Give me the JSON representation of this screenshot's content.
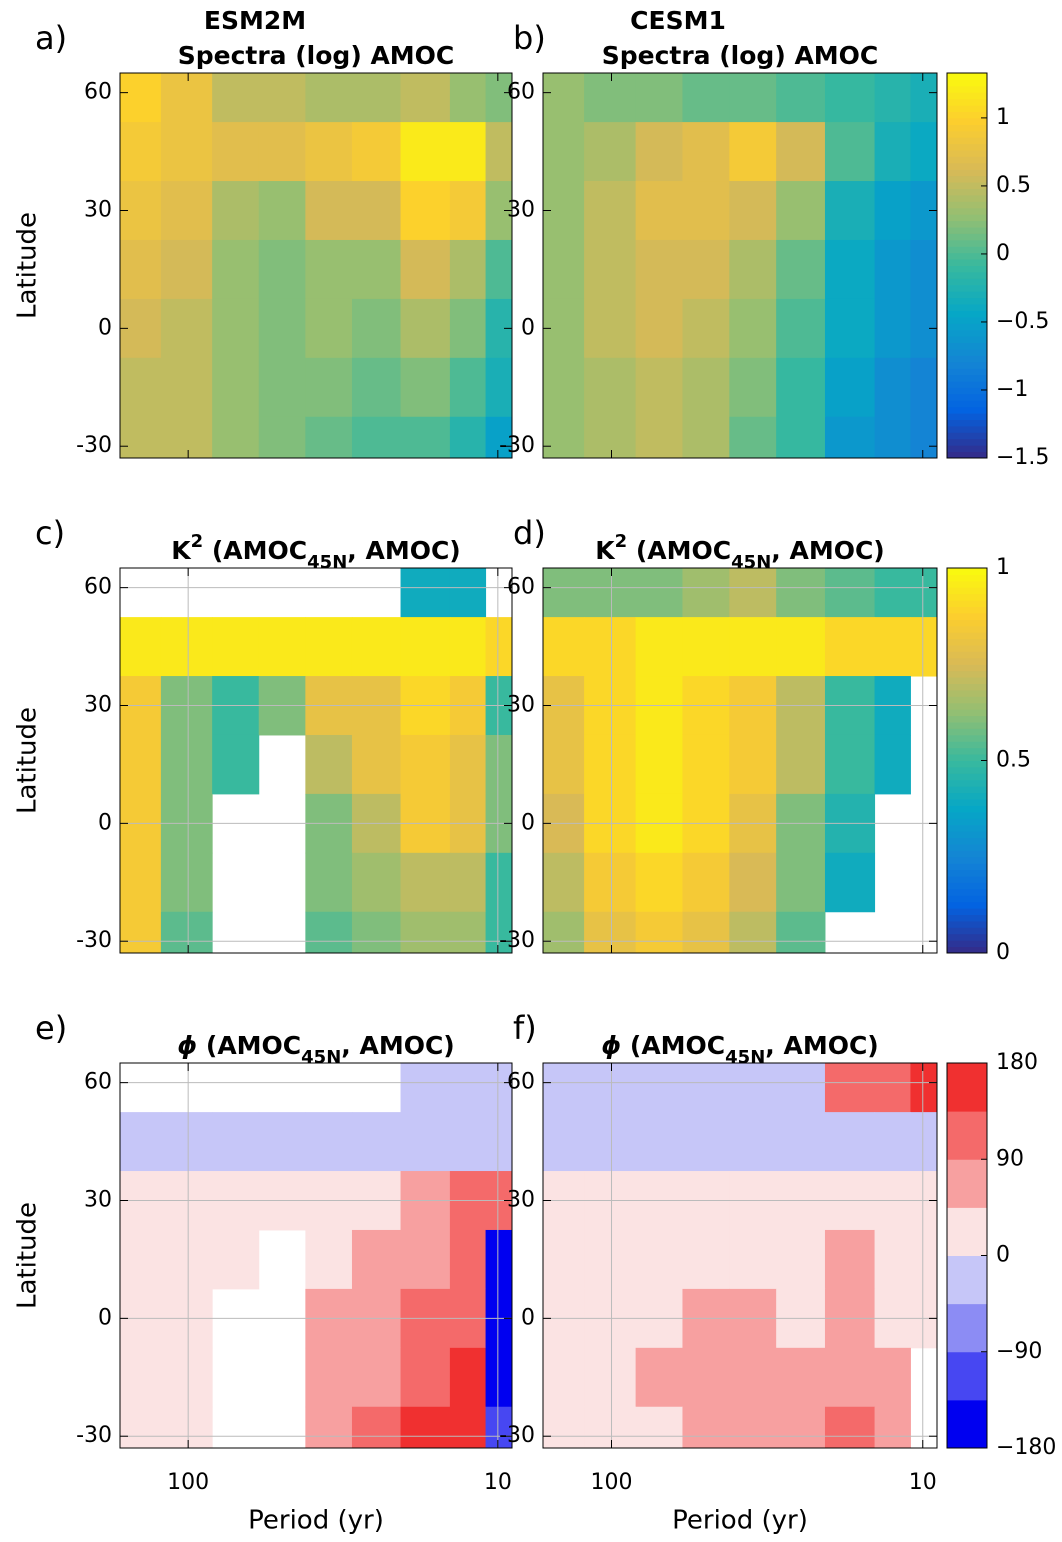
{
  "chart_data": [
    {
      "type": "heatmap",
      "panel_label": "a)",
      "title_lines": [
        [
          {
            "text": "ESM2M"
          }
        ],
        [
          {
            "text": "Spectra (log) AMOC"
          }
        ]
      ],
      "ylabel": "Latitude",
      "x": [
        150,
        100,
        70,
        50,
        35,
        25,
        17,
        12,
        10
      ],
      "y": [
        60,
        45,
        30,
        15,
        0,
        -15,
        -30
      ],
      "values": [
        [
          1.0,
          0.8,
          0.5,
          0.5,
          0.4,
          0.4,
          0.5,
          0.3,
          0.2
        ],
        [
          0.9,
          0.8,
          0.7,
          0.7,
          0.8,
          0.9,
          1.2,
          1.2,
          0.5
        ],
        [
          0.8,
          0.7,
          0.4,
          0.3,
          0.6,
          0.6,
          1.0,
          0.9,
          0.3
        ],
        [
          0.7,
          0.6,
          0.3,
          0.2,
          0.3,
          0.3,
          0.6,
          0.4,
          0
        ],
        [
          0.6,
          0.5,
          0.3,
          0.2,
          0.3,
          0.2,
          0.4,
          0.2,
          -0.2
        ],
        [
          0.5,
          0.5,
          0.3,
          0.2,
          0.2,
          0.1,
          0.2,
          0,
          -0.3
        ],
        [
          0.5,
          0.5,
          0.3,
          0.2,
          0.1,
          0,
          0,
          -0.2,
          -0.5
        ]
      ],
      "xlim": [
        166,
        9
      ],
      "xscale": "log",
      "xticks": [
        100,
        10
      ],
      "xticklabels": false,
      "ylim": [
        -33,
        65
      ],
      "yticks": [
        -30,
        0,
        30,
        60
      ],
      "grid": false,
      "clim": [
        -1.5,
        1.33
      ],
      "colormap": [
        "#352a87",
        "#0363e1",
        "#1485d4",
        "#06a7c6",
        "#38b99e",
        "#92bf73",
        "#d9ba56",
        "#fcce2e",
        "#f9fb0e"
      ],
      "discrete": false
    },
    {
      "type": "heatmap",
      "panel_label": "b)",
      "title_lines": [
        [
          {
            "text": "CESM1"
          }
        ],
        [
          {
            "text": "Spectra (log) AMOC"
          }
        ]
      ],
      "x": [
        150,
        100,
        70,
        50,
        35,
        25,
        17,
        12,
        10
      ],
      "y": [
        60,
        45,
        30,
        15,
        0,
        -15,
        -30
      ],
      "values": [
        [
          0.3,
          0.2,
          0.2,
          0.1,
          0.1,
          0,
          -0.1,
          -0.2,
          -0.3
        ],
        [
          0.3,
          0.4,
          0.6,
          0.7,
          0.9,
          0.6,
          0,
          -0.3,
          -0.4
        ],
        [
          0.3,
          0.5,
          0.7,
          0.7,
          0.6,
          0.3,
          -0.3,
          -0.5,
          -0.6
        ],
        [
          0.3,
          0.5,
          0.6,
          0.6,
          0.4,
          0.1,
          -0.4,
          -0.6,
          -0.7
        ],
        [
          0.3,
          0.5,
          0.6,
          0.5,
          0.3,
          0,
          -0.4,
          -0.6,
          -0.7
        ],
        [
          0.3,
          0.4,
          0.5,
          0.4,
          0.2,
          -0.1,
          -0.5,
          -0.7,
          -0.8
        ],
        [
          0.3,
          0.4,
          0.5,
          0.4,
          0.1,
          -0.1,
          -0.6,
          -0.7,
          -0.8
        ]
      ],
      "xlim": [
        166,
        9
      ],
      "xscale": "log",
      "xticks": [
        100,
        10
      ],
      "xticklabels": false,
      "ylim": [
        -33,
        65
      ],
      "yticks": [
        -30,
        0,
        30,
        60
      ],
      "grid": false,
      "clim": [
        -1.5,
        1.33
      ],
      "colormap": [
        "#352a87",
        "#0363e1",
        "#1485d4",
        "#06a7c6",
        "#38b99e",
        "#92bf73",
        "#d9ba56",
        "#fcce2e",
        "#f9fb0e"
      ],
      "discrete": false,
      "colorbar_ticks": [
        {
          "value": -1.5,
          "label": "−1.5"
        },
        {
          "value": -1,
          "label": "−1"
        },
        {
          "value": -0.5,
          "label": "−0.5"
        },
        0,
        0.5,
        1
      ]
    },
    {
      "type": "heatmap",
      "panel_label": "c)",
      "title_lines": [
        [
          {
            "text": "K"
          },
          {
            "text": "2",
            "script": "super"
          },
          {
            "text": " (AMOC"
          },
          {
            "text": "45N",
            "script": "sub"
          },
          {
            "text": ", AMOC)"
          }
        ]
      ],
      "ylabel": "Latitude",
      "x": [
        150,
        100,
        70,
        50,
        35,
        25,
        17,
        12,
        10
      ],
      "y": [
        60,
        45,
        30,
        15,
        0,
        -15,
        -30
      ],
      "values": [
        [
          null,
          null,
          null,
          null,
          null,
          null,
          0.4,
          0.4,
          null
        ],
        [
          0.95,
          0.95,
          0.95,
          0.95,
          0.95,
          0.95,
          0.95,
          0.95,
          0.9
        ],
        [
          0.85,
          0.6,
          0.5,
          0.6,
          0.8,
          0.8,
          0.9,
          0.85,
          0.5
        ],
        [
          0.85,
          0.6,
          0.5,
          null,
          0.7,
          0.8,
          0.85,
          0.8,
          0.6
        ],
        [
          0.85,
          0.6,
          null,
          null,
          0.6,
          0.7,
          0.85,
          0.8,
          0.6
        ],
        [
          0.85,
          0.6,
          null,
          null,
          0.6,
          0.65,
          0.7,
          0.7,
          0.5
        ],
        [
          0.85,
          0.55,
          null,
          null,
          0.55,
          0.6,
          0.65,
          0.65,
          0.5
        ]
      ],
      "xlim": [
        166,
        9
      ],
      "xscale": "log",
      "xticks": [
        100,
        10
      ],
      "xticklabels": false,
      "ylim": [
        -33,
        65
      ],
      "yticks": [
        -30,
        0,
        30,
        60
      ],
      "grid": true,
      "clim": [
        0,
        1
      ],
      "colormap": [
        "#352a87",
        "#0363e1",
        "#1485d4",
        "#06a7c6",
        "#38b99e",
        "#92bf73",
        "#d9ba56",
        "#fcce2e",
        "#f9fb0e"
      ],
      "discrete": false
    },
    {
      "type": "heatmap",
      "panel_label": "d)",
      "title_lines": [
        [
          {
            "text": "K"
          },
          {
            "text": "2",
            "script": "super"
          },
          {
            "text": " (AMOC"
          },
          {
            "text": "45N",
            "script": "sub"
          },
          {
            "text": ", AMOC)"
          }
        ]
      ],
      "x": [
        150,
        100,
        70,
        50,
        35,
        25,
        17,
        12,
        10
      ],
      "y": [
        60,
        45,
        30,
        15,
        0,
        -15,
        -30
      ],
      "values": [
        [
          0.6,
          0.6,
          0.6,
          0.65,
          0.7,
          0.6,
          0.55,
          0.5,
          0.5
        ],
        [
          0.9,
          0.9,
          0.95,
          0.95,
          0.95,
          0.95,
          0.9,
          0.9,
          0.9
        ],
        [
          0.8,
          0.9,
          0.95,
          0.9,
          0.85,
          0.7,
          0.5,
          0.4,
          null
        ],
        [
          0.8,
          0.9,
          0.95,
          0.9,
          0.85,
          0.7,
          0.5,
          0.4,
          null
        ],
        [
          0.75,
          0.9,
          0.95,
          0.9,
          0.8,
          0.6,
          0.45,
          null,
          null
        ],
        [
          0.7,
          0.85,
          0.9,
          0.85,
          0.75,
          0.6,
          0.4,
          null,
          null
        ],
        [
          0.65,
          0.8,
          0.85,
          0.8,
          0.7,
          0.55,
          null,
          null,
          null
        ]
      ],
      "xlim": [
        166,
        9
      ],
      "xscale": "log",
      "xticks": [
        100,
        10
      ],
      "xticklabels": false,
      "ylim": [
        -33,
        65
      ],
      "yticks": [
        -30,
        0,
        30,
        60
      ],
      "grid": true,
      "clim": [
        0,
        1
      ],
      "colormap": [
        "#352a87",
        "#0363e1",
        "#1485d4",
        "#06a7c6",
        "#38b99e",
        "#92bf73",
        "#d9ba56",
        "#fcce2e",
        "#f9fb0e"
      ],
      "discrete": false,
      "colorbar_ticks": [
        0,
        0.5,
        1
      ]
    },
    {
      "type": "heatmap",
      "panel_label": "e)",
      "title_lines": [
        [
          {
            "text": "ϕ",
            "italic": true
          },
          {
            "text": " (AMOC"
          },
          {
            "text": "45N",
            "script": "sub"
          },
          {
            "text": ", AMOC)"
          }
        ]
      ],
      "ylabel": "Latitude",
      "xlabel": "Period (yr)",
      "x": [
        150,
        100,
        70,
        50,
        35,
        25,
        17,
        12,
        10
      ],
      "y": [
        60,
        45,
        30,
        15,
        0,
        -15,
        -30
      ],
      "values": [
        [
          null,
          null,
          null,
          null,
          null,
          null,
          -45,
          -45,
          -45
        ],
        [
          -30,
          -30,
          -30,
          -30,
          -30,
          -30,
          -30,
          -30,
          -30
        ],
        [
          20,
          20,
          20,
          20,
          20,
          20,
          60,
          100,
          120
        ],
        [
          20,
          20,
          20,
          null,
          20,
          50,
          60,
          100,
          -150
        ],
        [
          20,
          20,
          null,
          null,
          50,
          60,
          100,
          100,
          -150
        ],
        [
          20,
          20,
          null,
          null,
          50,
          80,
          130,
          150,
          -150
        ],
        [
          20,
          20,
          null,
          null,
          60,
          100,
          150,
          150,
          -120
        ]
      ],
      "xlim": [
        166,
        9
      ],
      "xscale": "log",
      "xticks": [
        100,
        10
      ],
      "xticklabels": true,
      "ylim": [
        -33,
        65
      ],
      "yticks": [
        -30,
        0,
        30,
        60
      ],
      "grid": true,
      "clim": [
        -180,
        180
      ],
      "colormap": [
        "#0000f0",
        "#4747f2",
        "#8c8cf4",
        "#c6c6f8",
        "#fbe3e3",
        "#f7a0a0",
        "#f46a6a",
        "#f03030"
      ],
      "discrete": true
    },
    {
      "type": "heatmap",
      "panel_label": "f)",
      "title_lines": [
        [
          {
            "text": "ϕ",
            "italic": true
          },
          {
            "text": " (AMOC"
          },
          {
            "text": "45N",
            "script": "sub"
          },
          {
            "text": ", AMOC)"
          }
        ]
      ],
      "xlabel": "Period (yr)",
      "x": [
        150,
        100,
        70,
        50,
        35,
        25,
        17,
        12,
        10
      ],
      "y": [
        60,
        45,
        30,
        15,
        0,
        -15,
        -30
      ],
      "values": [
        [
          -30,
          -30,
          -30,
          -30,
          -30,
          -30,
          100,
          120,
          150
        ],
        [
          -30,
          -30,
          -30,
          -30,
          -30,
          -30,
          -30,
          -30,
          -30
        ],
        [
          20,
          20,
          20,
          20,
          20,
          20,
          20,
          20,
          20
        ],
        [
          20,
          20,
          20,
          20,
          20,
          20,
          60,
          30,
          30
        ],
        [
          20,
          20,
          20,
          60,
          60,
          30,
          60,
          30,
          30
        ],
        [
          20,
          20,
          60,
          60,
          60,
          60,
          60,
          60,
          null
        ],
        [
          20,
          20,
          20,
          60,
          60,
          60,
          100,
          60,
          null
        ]
      ],
      "xlim": [
        166,
        9
      ],
      "xscale": "log",
      "xticks": [
        100,
        10
      ],
      "xticklabels": true,
      "ylim": [
        -33,
        65
      ],
      "yticks": [
        -30,
        0,
        30,
        60
      ],
      "grid": true,
      "clim": [
        -180,
        180
      ],
      "colormap": [
        "#0000f0",
        "#4747f2",
        "#8c8cf4",
        "#c6c6f8",
        "#fbe3e3",
        "#f7a0a0",
        "#f46a6a",
        "#f03030"
      ],
      "discrete": true,
      "colorbar_ticks": [
        {
          "value": -180,
          "label": "−180"
        },
        {
          "value": -90,
          "label": "−90"
        },
        0,
        90,
        180
      ]
    }
  ]
}
